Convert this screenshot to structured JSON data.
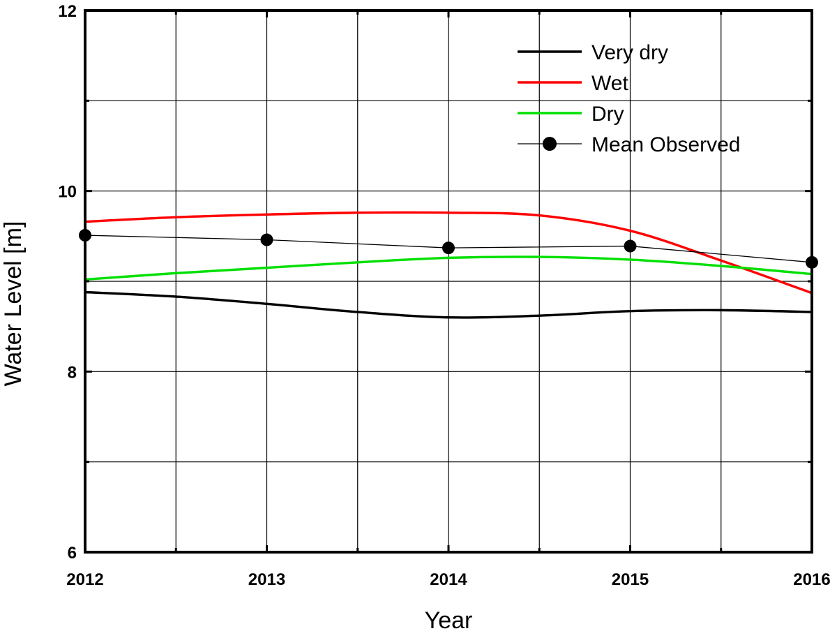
{
  "chart_data": {
    "type": "line",
    "xlabel": "Year",
    "ylabel": "Water Level [m]",
    "xlim": [
      2012,
      2016
    ],
    "ylim": [
      6,
      12
    ],
    "xticks": [
      2012,
      2013,
      2014,
      2015,
      2016
    ],
    "xtick_labels": [
      "2012",
      "2013",
      "2014",
      "2015",
      "2016"
    ],
    "yticks": [
      6,
      8,
      10,
      12
    ],
    "ytick_labels": [
      "6",
      "8",
      "10",
      "12"
    ],
    "grid": true,
    "legend_position": "top-right",
    "series": [
      {
        "name": "Very dry",
        "color": "#000000",
        "x": [
          2012,
          2012.5,
          2013,
          2013.5,
          2014,
          2014.5,
          2015,
          2015.5,
          2016
        ],
        "y": [
          8.88,
          8.83,
          8.75,
          8.66,
          8.6,
          8.62,
          8.67,
          8.68,
          8.66
        ]
      },
      {
        "name": "Wet",
        "color": "#ff0000",
        "x": [
          2012,
          2012.5,
          2013,
          2013.5,
          2014,
          2014.5,
          2015,
          2015.5,
          2016
        ],
        "y": [
          9.66,
          9.71,
          9.74,
          9.76,
          9.76,
          9.73,
          9.56,
          9.23,
          8.87
        ]
      },
      {
        "name": "Dry",
        "color": "#00e000",
        "x": [
          2012,
          2012.5,
          2013,
          2013.5,
          2014,
          2014.5,
          2015,
          2015.5,
          2016
        ],
        "y": [
          9.02,
          9.09,
          9.15,
          9.21,
          9.26,
          9.27,
          9.24,
          9.17,
          9.08
        ]
      },
      {
        "name": "Mean Observed",
        "color": "#000000",
        "marker": "circle",
        "x": [
          2012,
          2013,
          2014,
          2015,
          2016
        ],
        "y": [
          9.51,
          9.46,
          9.37,
          9.39,
          9.21
        ]
      }
    ]
  }
}
